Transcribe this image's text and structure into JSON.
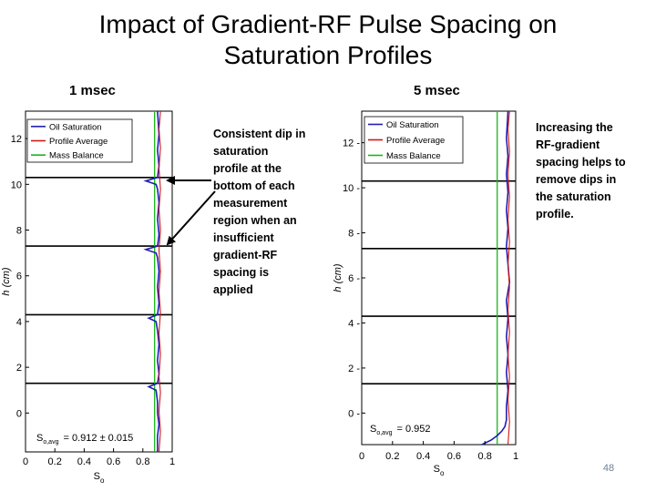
{
  "slide": {
    "title_line1": "Impact of Gradient-RF Pulse Spacing on",
    "title_line2": "Saturation Profiles",
    "slide_number": "48"
  },
  "notes": {
    "left": "Consistent dip in\nsaturation\nprofile at the\nbottom of each\nmeasurement\nregion when an\ninsufficient\ngradient-RF\nspacing is\napplied",
    "right": "Increasing the\nRF-gradient\nspacing helps to\nremove dips in\nthe saturation\nprofile."
  },
  "colors": {
    "oil_saturation": "#1f1fb0",
    "profile_average": "#d01818",
    "mass_balance": "#18b818",
    "region_boundary": "#000000"
  },
  "chart_data": [
    {
      "type": "line",
      "panel_label": "1 msec",
      "xlabel": "S",
      "xlabel_sub": "o",
      "ylabel": "h (cm)",
      "xlim": [
        0,
        1
      ],
      "ylim": [
        -1.7,
        13.2
      ],
      "x_ticks": [
        "0",
        "0.2",
        "0.4",
        "0.6",
        "0.8",
        "1"
      ],
      "y_ticks": [
        "0",
        "2",
        "4",
        "6",
        "8",
        "10",
        "12"
      ],
      "y_tick_values": [
        0,
        2,
        4,
        6,
        8,
        10,
        12
      ],
      "legend": [
        "Oil Saturation",
        "Profile Average",
        "Mass Balance"
      ],
      "annotation_label": "S",
      "annotation_sub": "o,avg",
      "annotation_value": "= 0.912 ± 0.015",
      "mass_balance": 0.88,
      "region_boundaries": [
        1.3,
        4.3,
        7.3,
        10.3
      ],
      "series": [
        {
          "name": "Oil Saturation",
          "points": [
            [
              0.9,
              -1.7
            ],
            [
              0.9,
              -1.0
            ],
            [
              0.91,
              -0.5
            ],
            [
              0.9,
              0.0
            ],
            [
              0.9,
              0.5
            ],
            [
              0.89,
              1.0
            ],
            [
              0.84,
              1.15
            ],
            [
              0.9,
              1.3
            ],
            [
              0.91,
              1.7
            ],
            [
              0.9,
              2.3
            ],
            [
              0.91,
              3.0
            ],
            [
              0.9,
              3.6
            ],
            [
              0.89,
              4.0
            ],
            [
              0.84,
              4.15
            ],
            [
              0.9,
              4.3
            ],
            [
              0.91,
              4.8
            ],
            [
              0.9,
              5.5
            ],
            [
              0.91,
              6.2
            ],
            [
              0.9,
              6.8
            ],
            [
              0.89,
              7.0
            ],
            [
              0.82,
              7.15
            ],
            [
              0.9,
              7.3
            ],
            [
              0.91,
              7.8
            ],
            [
              0.9,
              8.5
            ],
            [
              0.91,
              9.2
            ],
            [
              0.9,
              9.8
            ],
            [
              0.89,
              10.0
            ],
            [
              0.82,
              10.15
            ],
            [
              0.9,
              10.3
            ],
            [
              0.91,
              10.8
            ],
            [
              0.9,
              11.5
            ],
            [
              0.91,
              12.2
            ],
            [
              0.9,
              13.2
            ]
          ]
        },
        {
          "name": "Profile Average",
          "points": [
            [
              0.91,
              -1.7
            ],
            [
              0.92,
              -0.8
            ],
            [
              0.91,
              0.1
            ],
            [
              0.92,
              0.9
            ],
            [
              0.91,
              1.6
            ],
            [
              0.92,
              2.6
            ],
            [
              0.91,
              3.5
            ],
            [
              0.92,
              4.4
            ],
            [
              0.91,
              5.3
            ],
            [
              0.92,
              6.2
            ],
            [
              0.91,
              7.1
            ],
            [
              0.92,
              8.0
            ],
            [
              0.91,
              8.9
            ],
            [
              0.92,
              9.8
            ],
            [
              0.91,
              10.7
            ],
            [
              0.92,
              11.6
            ],
            [
              0.91,
              12.4
            ],
            [
              0.92,
              13.2
            ]
          ]
        }
      ]
    },
    {
      "type": "line",
      "panel_label": "5 msec",
      "xlabel": "S",
      "xlabel_sub": "o",
      "ylabel": "h (cm)",
      "xlim": [
        0,
        1
      ],
      "ylim": [
        -1.4,
        13.4
      ],
      "x_ticks": [
        "0",
        "0.2",
        "0.4",
        "0.6",
        "0.8",
        "1"
      ],
      "y_ticks": [
        "0 -",
        "2 -",
        "4 -",
        "6 -",
        "8 -",
        "10 -",
        "12 -"
      ],
      "y_tick_values": [
        0,
        2,
        4,
        6,
        8,
        10,
        12
      ],
      "legend": [
        "Oil Saturation",
        "Profile Average",
        "Mass Balance"
      ],
      "annotation_label": "S",
      "annotation_sub": "o,avg",
      "annotation_value": "= 0.952",
      "mass_balance": 0.88,
      "region_boundaries": [
        1.3,
        4.3,
        7.3,
        10.3
      ],
      "series": [
        {
          "name": "Oil Saturation",
          "points": [
            [
              0.78,
              -1.4
            ],
            [
              0.84,
              -1.2
            ],
            [
              0.88,
              -1.0
            ],
            [
              0.91,
              -0.8
            ],
            [
              0.93,
              -0.6
            ],
            [
              0.94,
              -0.3
            ],
            [
              0.94,
              0.3
            ],
            [
              0.95,
              1.0
            ],
            [
              0.94,
              1.8
            ],
            [
              0.95,
              2.6
            ],
            [
              0.94,
              3.4
            ],
            [
              0.95,
              4.2
            ],
            [
              0.94,
              5.0
            ],
            [
              0.96,
              5.8
            ],
            [
              0.95,
              6.6
            ],
            [
              0.94,
              7.4
            ],
            [
              0.95,
              8.2
            ],
            [
              0.94,
              9.0
            ],
            [
              0.95,
              9.8
            ],
            [
              0.94,
              10.6
            ],
            [
              0.95,
              11.4
            ],
            [
              0.94,
              12.2
            ],
            [
              0.95,
              13.4
            ]
          ]
        },
        {
          "name": "Profile Average",
          "points": [
            [
              0.95,
              -1.4
            ],
            [
              0.96,
              -0.4
            ],
            [
              0.95,
              0.6
            ],
            [
              0.96,
              1.6
            ],
            [
              0.95,
              2.6
            ],
            [
              0.96,
              3.6
            ],
            [
              0.95,
              4.6
            ],
            [
              0.96,
              5.6
            ],
            [
              0.95,
              6.6
            ],
            [
              0.96,
              7.6
            ],
            [
              0.95,
              8.6
            ],
            [
              0.96,
              9.6
            ],
            [
              0.95,
              10.6
            ],
            [
              0.96,
              11.6
            ],
            [
              0.95,
              12.6
            ],
            [
              0.96,
              13.4
            ]
          ]
        }
      ]
    }
  ]
}
